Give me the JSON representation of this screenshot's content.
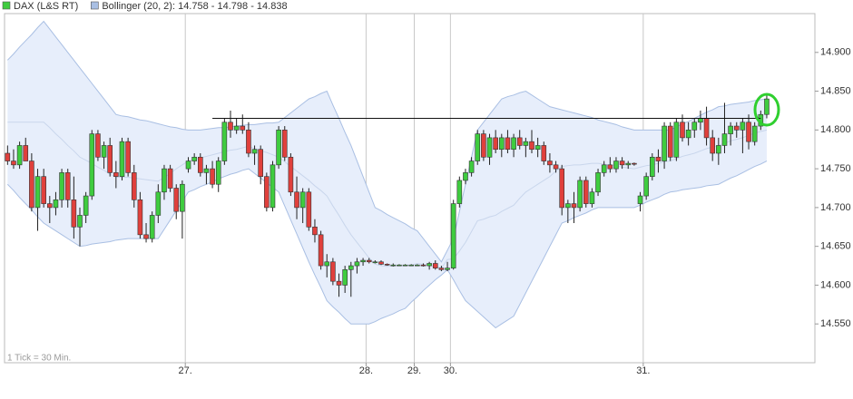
{
  "chart_data": {
    "type": "candlestick",
    "note": "1 Tick = 30 Min.",
    "categories": [
      null,
      null,
      null,
      null,
      null,
      null,
      null,
      null,
      null,
      null,
      null,
      null,
      null,
      null,
      null,
      null,
      null,
      null,
      null,
      null,
      null,
      null,
      null,
      null,
      null,
      null,
      null,
      null,
      null,
      null,
      "27.",
      null,
      null,
      null,
      null,
      null,
      null,
      null,
      null,
      null,
      null,
      null,
      null,
      null,
      null,
      null,
      null,
      null,
      null,
      null,
      null,
      null,
      null,
      null,
      null,
      null,
      null,
      null,
      null,
      null,
      "28.",
      null,
      null,
      null,
      null,
      null,
      null,
      null,
      "29.",
      null,
      null,
      null,
      null,
      null,
      "30.",
      null,
      null,
      null,
      null,
      null,
      null,
      null,
      null,
      null,
      null,
      null,
      null,
      null,
      null,
      null,
      null,
      null,
      null,
      null,
      null,
      null,
      null,
      null,
      null,
      null,
      null,
      null,
      null,
      null,
      null,
      null,
      "31.",
      null,
      null,
      null,
      null,
      null,
      null,
      null,
      null,
      null,
      null,
      null,
      null,
      null,
      null,
      null,
      null,
      null,
      null,
      null,
      null
    ],
    "ylim": [
      14.5,
      14.95
    ],
    "yticks": [
      {
        "value": 14.55,
        "label": "14.550"
      },
      {
        "value": 14.6,
        "label": "14.600"
      },
      {
        "value": 14.65,
        "label": "14.650"
      },
      {
        "value": 14.7,
        "label": "14.700"
      },
      {
        "value": 14.75,
        "label": "14.750"
      },
      {
        "value": 14.8,
        "label": "14.800"
      },
      {
        "value": 14.85,
        "label": "14.850"
      },
      {
        "value": 14.9,
        "label": "14.900"
      }
    ],
    "hline": 14.815,
    "up_color": "#3fcc3f",
    "down_color": "#e0403c",
    "series": [
      {
        "name": "DAX (L&S RT)",
        "type": "candlestick",
        "color": "#3fcc3f",
        "open": [
          14.77,
          14.76,
          14.755,
          14.78,
          14.76,
          14.7,
          14.74,
          14.705,
          14.7,
          14.71,
          14.745,
          14.71,
          14.675,
          14.69,
          14.715,
          14.795,
          14.765,
          14.78,
          14.745,
          14.74,
          14.785,
          14.745,
          14.71,
          14.665,
          14.66,
          14.69,
          14.72,
          14.75,
          14.725,
          14.695,
          14.75,
          14.76,
          14.765,
          14.745,
          14.75,
          14.73,
          14.76,
          14.81,
          14.8,
          14.805,
          14.8,
          14.77,
          14.775,
          14.74,
          14.7,
          14.755,
          14.8,
          14.765,
          14.72,
          14.7,
          14.72,
          14.675,
          14.665,
          14.625,
          14.63,
          14.605,
          14.6,
          14.62,
          14.625,
          14.63,
          14.632,
          14.63,
          14.63,
          14.627,
          14.626,
          14.626,
          14.626,
          14.626,
          14.626,
          14.626,
          14.625,
          14.628,
          14.622,
          14.62,
          14.622,
          14.705,
          14.735,
          14.745,
          14.76,
          14.795,
          14.765,
          14.79,
          14.775,
          14.79,
          14.775,
          14.79,
          14.78,
          14.785,
          14.775,
          14.78,
          14.76,
          14.755,
          14.75,
          14.7,
          14.705,
          14.7,
          14.735,
          14.705,
          14.72,
          14.745,
          14.755,
          14.75,
          14.76,
          14.755,
          14.757,
          14.705,
          14.715,
          14.74,
          14.765,
          14.76,
          14.805,
          14.765,
          14.81,
          14.79,
          14.8,
          14.81,
          14.815,
          14.79,
          14.77,
          14.78,
          14.795,
          14.805,
          14.8,
          14.81,
          14.785,
          14.805,
          14.82
        ],
        "high": [
          14.78,
          14.775,
          14.785,
          14.79,
          14.77,
          14.75,
          14.75,
          14.715,
          14.72,
          14.75,
          14.75,
          14.74,
          14.7,
          14.72,
          14.8,
          14.8,
          14.785,
          14.79,
          14.76,
          14.79,
          14.79,
          14.755,
          14.72,
          14.68,
          14.695,
          14.73,
          14.755,
          14.755,
          14.73,
          14.735,
          14.765,
          14.77,
          14.77,
          14.755,
          14.76,
          14.765,
          14.815,
          14.825,
          14.815,
          14.82,
          14.81,
          14.78,
          14.78,
          14.745,
          14.76,
          14.805,
          14.805,
          14.77,
          14.74,
          14.725,
          14.725,
          14.685,
          14.67,
          14.64,
          14.635,
          14.615,
          14.625,
          14.63,
          14.635,
          14.635,
          14.635,
          14.632,
          14.632,
          14.628,
          14.628,
          14.627,
          14.627,
          14.627,
          14.627,
          14.628,
          14.63,
          14.632,
          14.625,
          14.63,
          14.71,
          14.74,
          14.75,
          14.765,
          14.8,
          14.8,
          14.795,
          14.8,
          14.795,
          14.8,
          14.795,
          14.8,
          14.79,
          14.8,
          14.79,
          14.785,
          14.77,
          14.76,
          14.755,
          14.71,
          14.72,
          14.74,
          14.74,
          14.725,
          14.75,
          14.76,
          14.765,
          14.765,
          14.765,
          14.76,
          14.758,
          14.72,
          14.745,
          14.77,
          14.775,
          14.81,
          14.81,
          14.815,
          14.82,
          14.81,
          14.815,
          14.825,
          14.83,
          14.8,
          14.79,
          14.835,
          14.81,
          14.81,
          14.815,
          14.82,
          14.81,
          14.825,
          14.845
        ],
        "low": [
          14.755,
          14.75,
          14.75,
          14.76,
          14.695,
          14.67,
          14.7,
          14.68,
          14.69,
          14.7,
          14.7,
          14.66,
          14.65,
          14.68,
          14.71,
          14.76,
          14.75,
          14.74,
          14.725,
          14.735,
          14.74,
          14.7,
          14.66,
          14.655,
          14.655,
          14.68,
          14.71,
          14.72,
          14.685,
          14.66,
          14.745,
          14.755,
          14.74,
          14.73,
          14.725,
          14.72,
          14.755,
          14.79,
          14.795,
          14.795,
          14.765,
          14.755,
          14.73,
          14.695,
          14.695,
          14.75,
          14.76,
          14.715,
          14.685,
          14.68,
          14.67,
          14.655,
          14.62,
          14.61,
          14.6,
          14.585,
          14.59,
          14.585,
          14.615,
          14.625,
          14.628,
          14.628,
          14.626,
          14.625,
          14.624,
          14.625,
          14.625,
          14.625,
          14.625,
          14.624,
          14.62,
          14.62,
          14.618,
          14.618,
          14.62,
          14.7,
          14.73,
          14.74,
          14.755,
          14.76,
          14.755,
          14.77,
          14.765,
          14.77,
          14.765,
          14.775,
          14.765,
          14.77,
          14.765,
          14.755,
          14.745,
          14.745,
          14.69,
          14.68,
          14.68,
          14.695,
          14.7,
          14.7,
          14.715,
          14.74,
          14.745,
          14.745,
          14.75,
          14.75,
          14.754,
          14.695,
          14.71,
          14.735,
          14.745,
          14.75,
          14.76,
          14.76,
          14.785,
          14.78,
          14.79,
          14.8,
          14.78,
          14.76,
          14.755,
          14.77,
          14.78,
          14.79,
          14.77,
          14.775,
          14.78,
          14.8,
          14.815
        ],
        "close": [
          14.76,
          14.755,
          14.78,
          14.76,
          14.7,
          14.74,
          14.705,
          14.7,
          14.71,
          14.745,
          14.71,
          14.675,
          14.69,
          14.715,
          14.795,
          14.765,
          14.78,
          14.745,
          14.74,
          14.785,
          14.745,
          14.71,
          14.665,
          14.66,
          14.69,
          14.72,
          14.75,
          14.725,
          14.695,
          14.73,
          14.76,
          14.765,
          14.745,
          14.75,
          14.73,
          14.76,
          14.81,
          14.8,
          14.805,
          14.8,
          14.77,
          14.775,
          14.74,
          14.7,
          14.755,
          14.8,
          14.765,
          14.72,
          14.7,
          14.72,
          14.675,
          14.665,
          14.625,
          14.63,
          14.605,
          14.6,
          14.62,
          14.625,
          14.63,
          14.632,
          14.63,
          14.63,
          14.627,
          14.626,
          14.626,
          14.626,
          14.626,
          14.626,
          14.626,
          14.625,
          14.628,
          14.622,
          14.62,
          14.622,
          14.705,
          14.735,
          14.745,
          14.76,
          14.795,
          14.765,
          14.79,
          14.775,
          14.79,
          14.775,
          14.79,
          14.78,
          14.785,
          14.775,
          14.78,
          14.76,
          14.755,
          14.75,
          14.7,
          14.705,
          14.7,
          14.735,
          14.705,
          14.72,
          14.745,
          14.755,
          14.75,
          14.76,
          14.755,
          14.757,
          14.756,
          14.715,
          14.74,
          14.765,
          14.76,
          14.805,
          14.765,
          14.81,
          14.79,
          14.8,
          14.81,
          14.815,
          14.79,
          14.77,
          14.78,
          14.795,
          14.805,
          14.8,
          14.81,
          14.785,
          14.805,
          14.82,
          14.84
        ]
      },
      {
        "name": "Bollinger (20, 2): 14.758 - 14.798 - 14.838",
        "type": "band",
        "color": "#a9bfe3",
        "fill": "#e7eefb",
        "upper": [
          14.89,
          14.898,
          14.907,
          14.915,
          14.923,
          14.932,
          14.94,
          14.93,
          14.92,
          14.91,
          14.9,
          14.89,
          14.88,
          14.87,
          14.86,
          14.85,
          14.84,
          14.83,
          14.82,
          14.818,
          14.817,
          14.815,
          14.813,
          14.812,
          14.81,
          14.808,
          14.806,
          14.804,
          14.803,
          14.801,
          14.8,
          14.8,
          14.8,
          14.801,
          14.802,
          14.803,
          14.803,
          14.804,
          14.805,
          14.806,
          14.807,
          14.807,
          14.808,
          14.809,
          14.809,
          14.81,
          14.816,
          14.822,
          14.828,
          14.834,
          14.84,
          14.843,
          14.847,
          14.85,
          14.832,
          14.815,
          14.797,
          14.78,
          14.76,
          14.74,
          14.72,
          14.7,
          14.696,
          14.691,
          14.687,
          14.683,
          14.679,
          14.674,
          14.67,
          14.66,
          14.65,
          14.64,
          14.63,
          14.645,
          14.66,
          14.695,
          14.73,
          14.765,
          14.8,
          14.81,
          14.82,
          14.83,
          14.84,
          14.843,
          14.845,
          14.848,
          14.85,
          14.845,
          14.84,
          14.835,
          14.83,
          14.828,
          14.826,
          14.824,
          14.822,
          14.82,
          14.818,
          14.816,
          14.813,
          14.811,
          14.809,
          14.807,
          14.804,
          14.802,
          14.8,
          14.8,
          14.8,
          14.8,
          14.8,
          14.8,
          14.8,
          14.804,
          14.808,
          14.811,
          14.815,
          14.819,
          14.823,
          14.826,
          14.83,
          14.831,
          14.833,
          14.834,
          14.835,
          14.836,
          14.838,
          14.839,
          14.84
        ],
        "middle": [
          14.81,
          14.81,
          14.81,
          14.81,
          14.81,
          14.81,
          14.81,
          14.803,
          14.795,
          14.788,
          14.78,
          14.773,
          14.765,
          14.761,
          14.757,
          14.752,
          14.748,
          14.743,
          14.739,
          14.739,
          14.739,
          14.738,
          14.737,
          14.736,
          14.735,
          14.734,
          14.739,
          14.744,
          14.75,
          14.755,
          14.76,
          14.762,
          14.764,
          14.766,
          14.768,
          14.77,
          14.772,
          14.774,
          14.775,
          14.777,
          14.779,
          14.776,
          14.773,
          14.771,
          14.768,
          14.765,
          14.759,
          14.753,
          14.747,
          14.741,
          14.735,
          14.728,
          14.722,
          14.715,
          14.702,
          14.69,
          14.677,
          14.665,
          14.655,
          14.645,
          14.635,
          14.627,
          14.625,
          14.624,
          14.625,
          14.625,
          14.625,
          14.626,
          14.628,
          14.627,
          14.625,
          14.624,
          14.622,
          14.633,
          14.634,
          14.644,
          14.655,
          14.669,
          14.683,
          14.685,
          14.688,
          14.69,
          14.695,
          14.699,
          14.703,
          14.712,
          14.72,
          14.725,
          14.73,
          14.735,
          14.74,
          14.747,
          14.753,
          14.754,
          14.755,
          14.755,
          14.756,
          14.757,
          14.757,
          14.756,
          14.755,
          14.754,
          14.752,
          14.751,
          14.75,
          14.752,
          14.754,
          14.755,
          14.757,
          14.759,
          14.76,
          14.763,
          14.766,
          14.768,
          14.77,
          14.773,
          14.776,
          14.778,
          14.78,
          14.783,
          14.786,
          14.788,
          14.79,
          14.793,
          14.796,
          14.798,
          14.8
        ],
        "lower": [
          14.73,
          14.722,
          14.713,
          14.705,
          14.697,
          14.688,
          14.68,
          14.675,
          14.67,
          14.665,
          14.66,
          14.655,
          14.65,
          14.651,
          14.653,
          14.654,
          14.655,
          14.656,
          14.658,
          14.659,
          14.66,
          14.66,
          14.66,
          14.66,
          14.66,
          14.66,
          14.672,
          14.684,
          14.696,
          14.708,
          14.72,
          14.723,
          14.727,
          14.73,
          14.733,
          14.737,
          14.74,
          14.743,
          14.745,
          14.748,
          14.75,
          14.744,
          14.738,
          14.732,
          14.726,
          14.72,
          14.702,
          14.684,
          14.666,
          14.648,
          14.63,
          14.613,
          14.597,
          14.58,
          14.572,
          14.565,
          14.557,
          14.55,
          14.55,
          14.55,
          14.55,
          14.553,
          14.557,
          14.56,
          14.563,
          14.567,
          14.57,
          14.578,
          14.585,
          14.593,
          14.6,
          14.607,
          14.613,
          14.62,
          14.607,
          14.593,
          14.58,
          14.573,
          14.566,
          14.559,
          14.552,
          14.545,
          14.55,
          14.555,
          14.56,
          14.575,
          14.59,
          14.605,
          14.62,
          14.635,
          14.65,
          14.665,
          14.68,
          14.683,
          14.687,
          14.69,
          14.693,
          14.697,
          14.7,
          14.7,
          14.7,
          14.7,
          14.7,
          14.7,
          14.7,
          14.703,
          14.707,
          14.71,
          14.713,
          14.717,
          14.72,
          14.721,
          14.723,
          14.724,
          14.725,
          14.726,
          14.728,
          14.729,
          14.73,
          14.734,
          14.738,
          14.741,
          14.745,
          14.749,
          14.753,
          14.756,
          14.76
        ]
      }
    ]
  }
}
